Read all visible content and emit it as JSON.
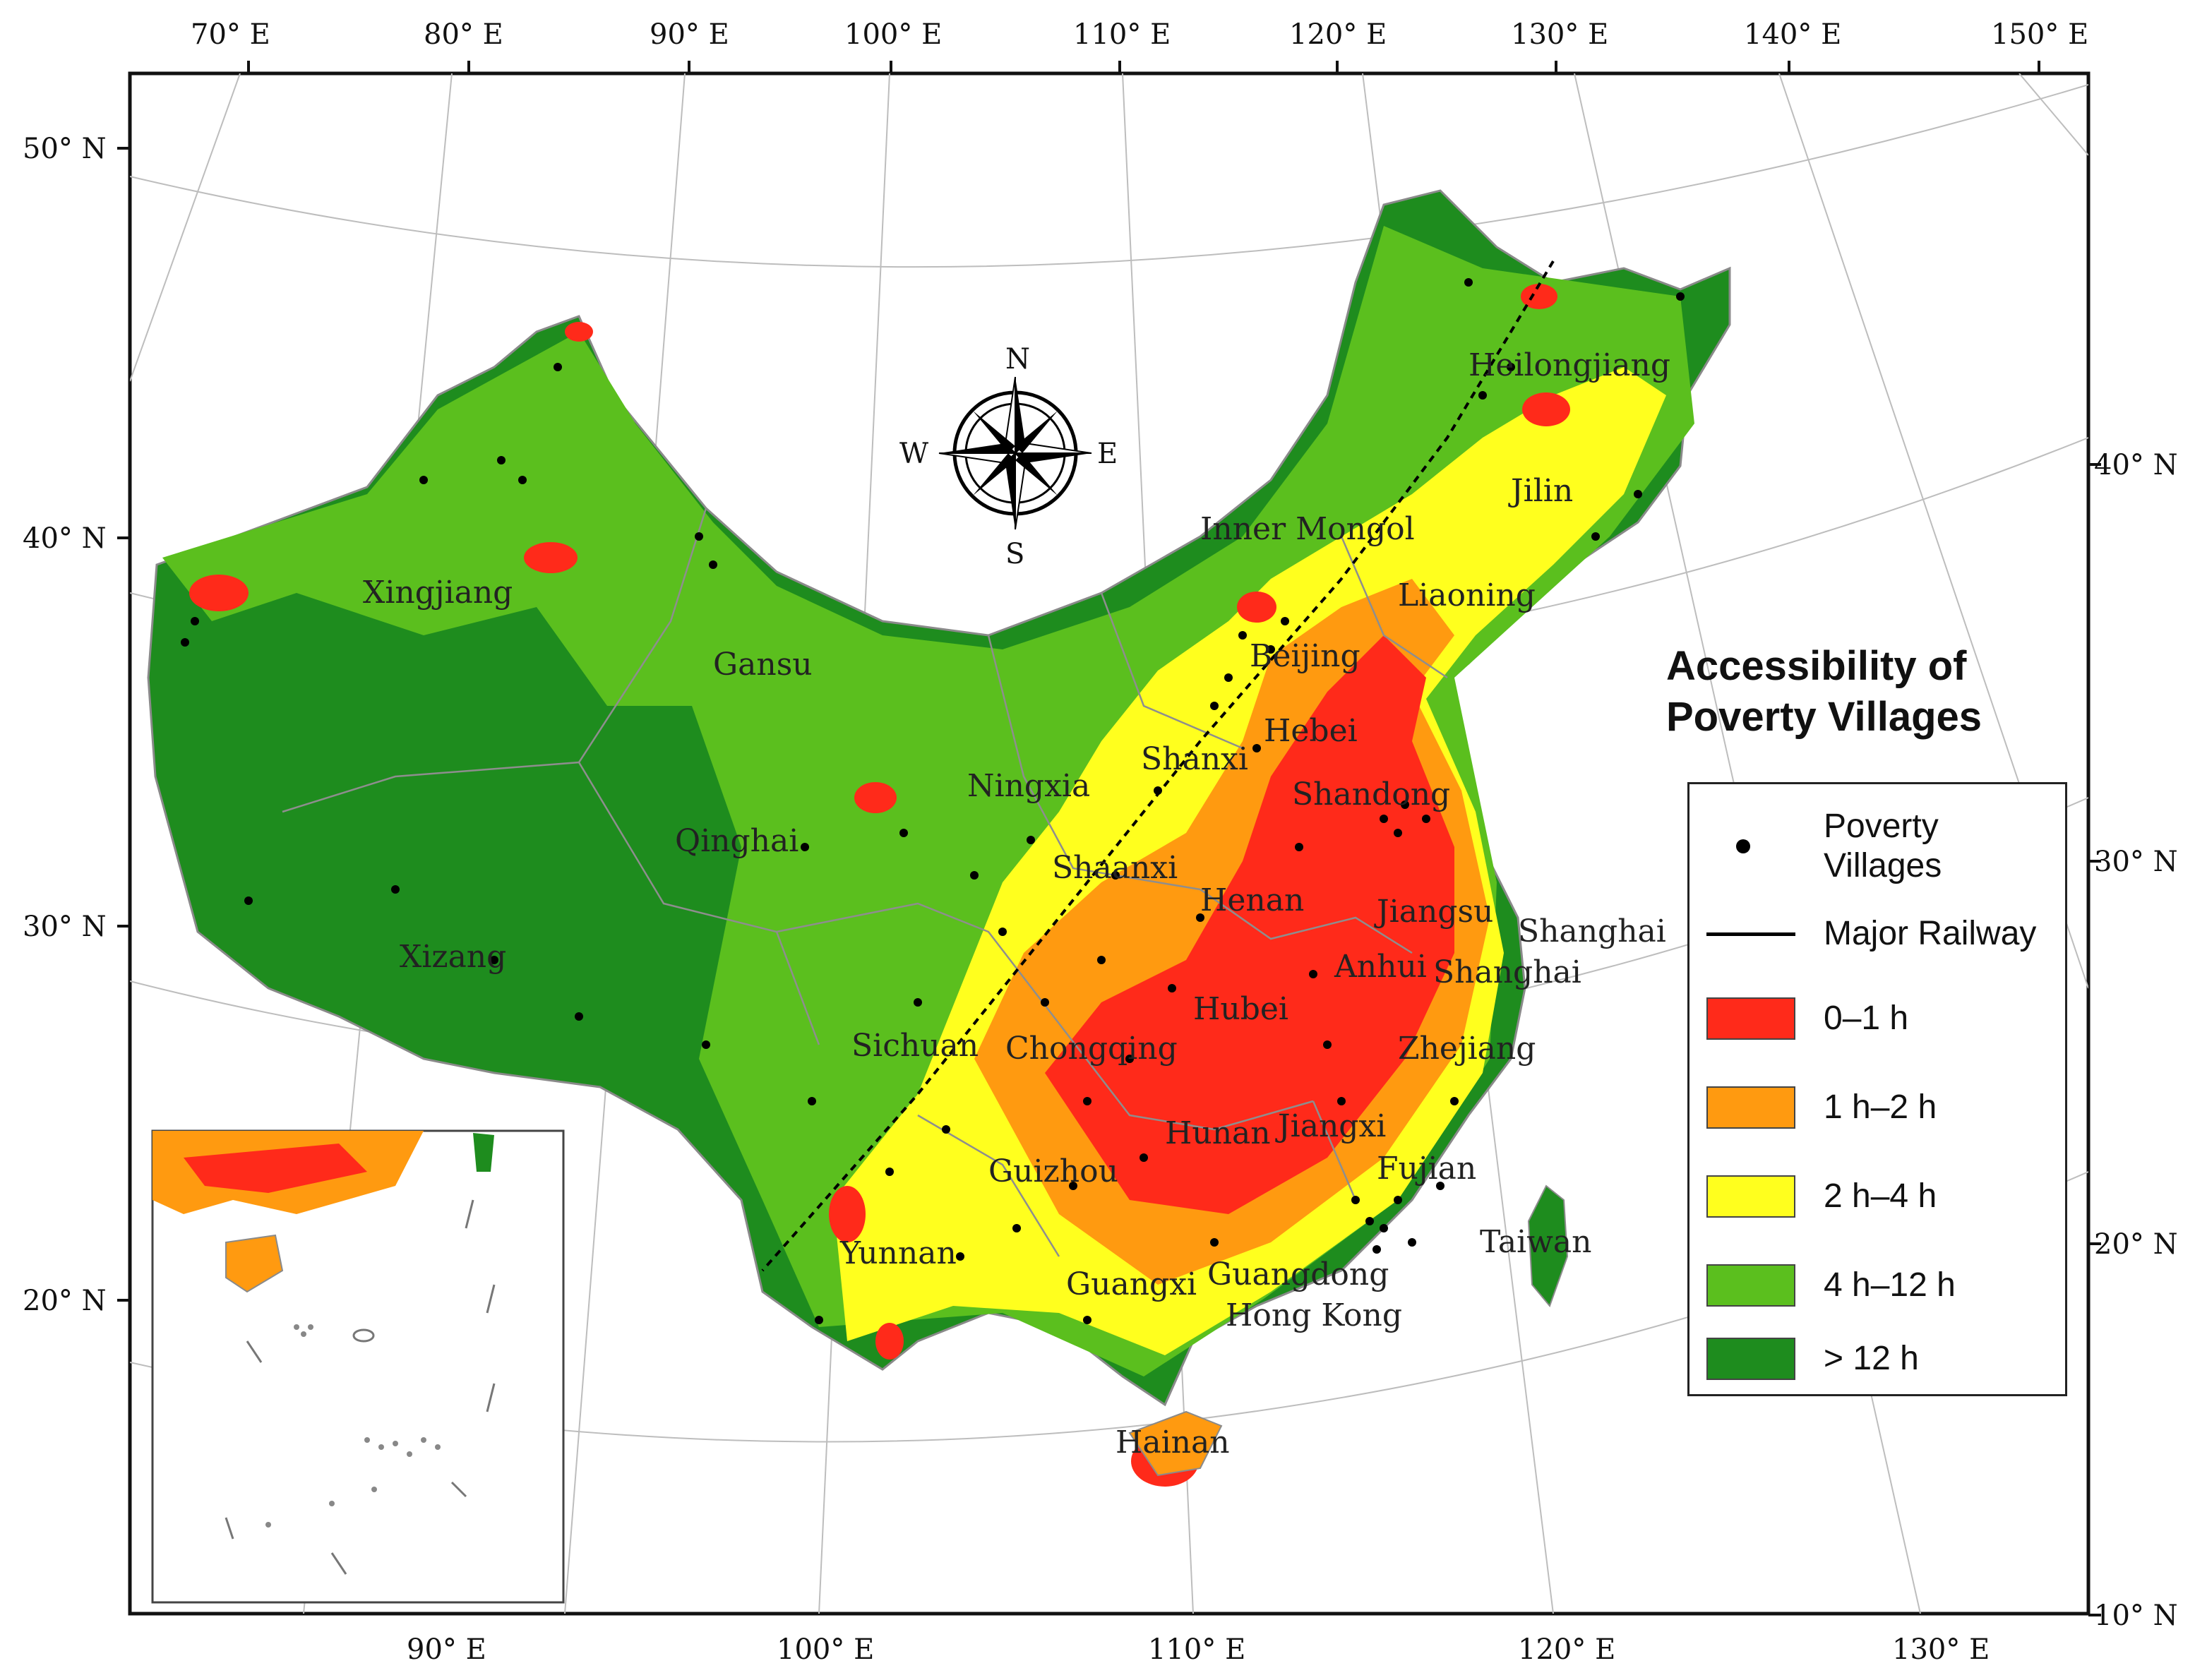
{
  "map": {
    "lon_top_labels": [
      "70° E",
      "80° E",
      "90° E",
      "100° E",
      "110° E",
      "120° E",
      "130° E",
      "140° E",
      "150° E"
    ],
    "lon_bottom_labels": [
      "90° E",
      "100° E",
      "110° E",
      "120° E",
      "130° E"
    ],
    "lat_left_labels": [
      "50° N",
      "40° N",
      "30° N",
      "20° N"
    ],
    "lat_right_labels": [
      "40° N",
      "30° N",
      "20° N",
      "10° N"
    ],
    "compass": {
      "n": "N",
      "s": "S",
      "e": "E",
      "w": "W"
    },
    "regions": [
      "Heilongjiang",
      "Jilin",
      "Inner Mongol",
      "Liaoning",
      "Beijing",
      "Hebei",
      "Shanxi",
      "Shandong",
      "Xingjiang",
      "Gansu",
      "Ningxia",
      "Qinghai",
      "Shaanxi",
      "Henan",
      "Jiangsu",
      "Shanghai",
      "Shanghai",
      "Anhui",
      "Xizang",
      "Sichuan",
      "Chongqing",
      "Hubei",
      "Zhejiang",
      "Hunan",
      "Jiangxi",
      "Guizhou",
      "Fujian",
      "Taiwan",
      "Yunnan",
      "Guangxi",
      "Guangdong",
      "Hong Kong",
      "Hainan"
    ],
    "colors": {
      "class_0_1": "#ff2a1a",
      "class_1_2": "#ff9a10",
      "class_2_4": "#ffff1e",
      "class_4_12": "#5bbf1e",
      "class_12_plus": "#1e8c1e",
      "railway": "#000000",
      "village": "#000000"
    }
  },
  "legend": {
    "title_line1": "Accessibility of",
    "title_line2": "Poverty Villages",
    "villages_line1": "Poverty",
    "villages_line2": "Villages",
    "railway": "Major Railway",
    "classes": [
      "0–1 h",
      "1 h–2 h",
      "2 h–4 h",
      "4 h–12 h",
      "> 12 h"
    ]
  }
}
